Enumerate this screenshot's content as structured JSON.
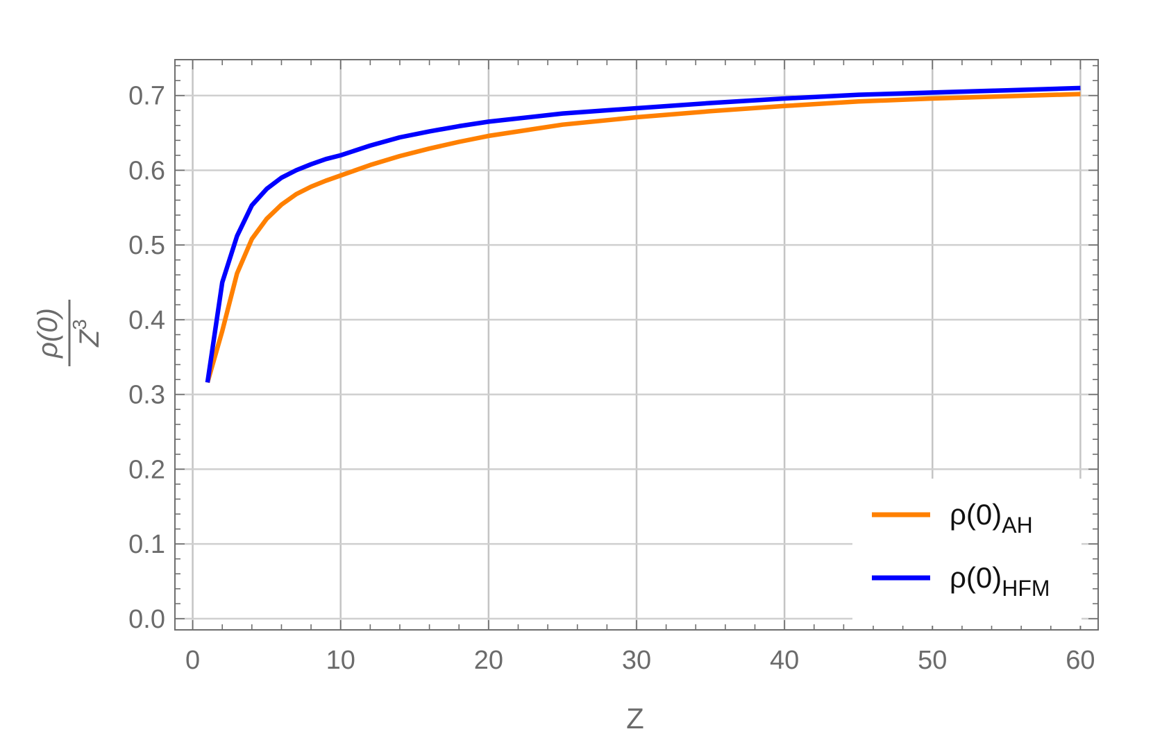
{
  "chart_data": {
    "type": "line",
    "xlabel": "Z",
    "ylabel": {
      "numerator": "ρ(0)",
      "denominator_base": "Z",
      "denominator_exp": "3"
    },
    "xlim": [
      -1.2,
      61.2
    ],
    "ylim": [
      -0.015,
      0.748
    ],
    "xticks": [
      0,
      10,
      20,
      30,
      40,
      50,
      60
    ],
    "xtick_labels": [
      "0",
      "10",
      "20",
      "30",
      "40",
      "50",
      "60"
    ],
    "yticks": [
      0.0,
      0.1,
      0.2,
      0.3,
      0.4,
      0.5,
      0.6,
      0.7
    ],
    "ytick_labels": [
      "0.0",
      "0.1",
      "0.2",
      "0.3",
      "0.4",
      "0.5",
      "0.6",
      "0.7"
    ],
    "grid": true,
    "legend_position": "bottom-right",
    "series": [
      {
        "name": "ρ(0)",
        "name_subscript": "AH",
        "color": "#ff8000",
        "x": [
          1,
          2,
          3,
          4,
          5,
          6,
          7,
          8,
          9,
          10,
          12,
          14,
          16,
          18,
          20,
          25,
          30,
          35,
          40,
          45,
          50,
          55,
          60
        ],
        "y": [
          0.316,
          0.385,
          0.462,
          0.508,
          0.535,
          0.554,
          0.568,
          0.578,
          0.586,
          0.593,
          0.607,
          0.619,
          0.629,
          0.638,
          0.646,
          0.661,
          0.671,
          0.679,
          0.686,
          0.692,
          0.696,
          0.699,
          0.702
        ]
      },
      {
        "name": "ρ(0)",
        "name_subscript": "HFM",
        "color": "#0000ff",
        "x": [
          1,
          2,
          3,
          4,
          5,
          6,
          7,
          8,
          9,
          10,
          12,
          14,
          16,
          18,
          20,
          25,
          30,
          35,
          40,
          45,
          50,
          55,
          60
        ],
        "y": [
          0.316,
          0.45,
          0.512,
          0.553,
          0.575,
          0.59,
          0.6,
          0.608,
          0.615,
          0.62,
          0.633,
          0.644,
          0.652,
          0.659,
          0.665,
          0.676,
          0.683,
          0.69,
          0.696,
          0.701,
          0.704,
          0.707,
          0.71
        ]
      }
    ]
  }
}
